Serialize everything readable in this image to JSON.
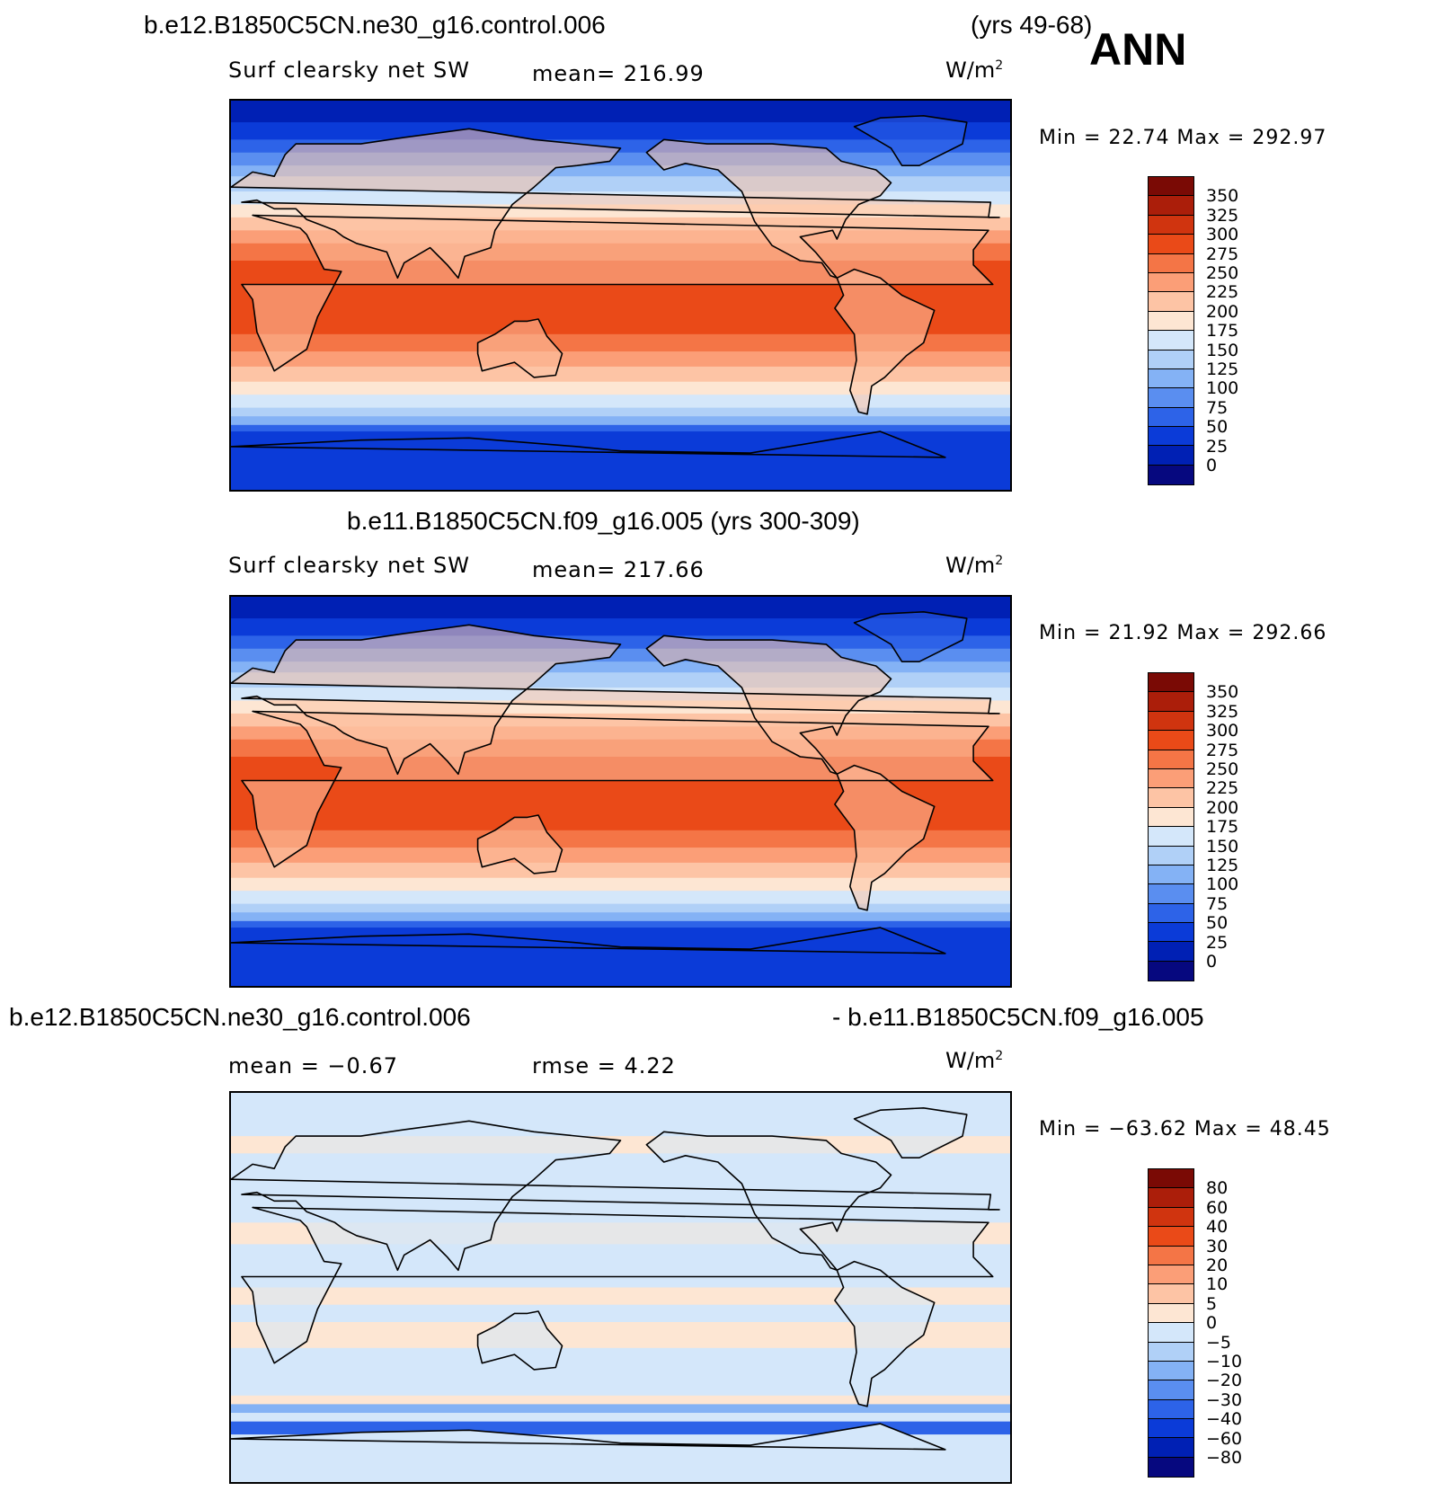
{
  "header": {
    "case_title": "b.e12.B1850C5CN.ne30_g16.control.006",
    "years": "(yrs 49-68)",
    "season": "ANN"
  },
  "panels": [
    {
      "title": "",
      "variable": "Surf clearsky net SW",
      "mean": "mean= 216.99",
      "units": "W/m",
      "units_sup": "2",
      "minmax": "Min =   22.74  Max =  292.97",
      "kind": "abs"
    },
    {
      "title": "b.e11.B1850C5CN.f09_g16.005 (yrs 300-309)",
      "variable": "Surf clearsky net SW",
      "mean": "mean= 217.66",
      "units": "W/m",
      "units_sup": "2",
      "minmax": "Min =   21.92  Max =  292.66",
      "kind": "abs"
    },
    {
      "title_left": "b.e12.B1850C5CN.ne30_g16.control.006",
      "title_right": "- b.e11.B1850C5CN.f09_g16.005",
      "mean": "mean =   −0.67",
      "rmse": "rmse =    4.22",
      "units": "W/m",
      "units_sup": "2",
      "minmax": "Min = −63.62  Max =   48.45",
      "kind": "diff"
    }
  ],
  "colorbars": {
    "abs": {
      "labels": [
        "350",
        "325",
        "300",
        "275",
        "250",
        "225",
        "200",
        "175",
        "150",
        "125",
        "100",
        "75",
        "50",
        "25",
        "0"
      ],
      "colors": [
        "#7a0a05",
        "#ab1e0a",
        "#d0340f",
        "#ea4a18",
        "#f47546",
        "#fb9e77",
        "#fdc4a5",
        "#fde6d3",
        "#d4e7fa",
        "#b0d0f7",
        "#84b2f5",
        "#5a8ef0",
        "#2d63e8",
        "#0b3bd8",
        "#0020b4",
        "#06087f"
      ]
    },
    "diff": {
      "labels": [
        "80",
        "60",
        "40",
        "30",
        "20",
        "10",
        "5",
        "0",
        "−5",
        "−10",
        "−20",
        "−30",
        "−40",
        "−60",
        "−80"
      ],
      "colors": [
        "#7a0a05",
        "#ab1e0a",
        "#d0340f",
        "#ea4a18",
        "#f47546",
        "#fb9e77",
        "#fdc4a5",
        "#fde6d3",
        "#d4e7fa",
        "#b0d0f7",
        "#84b2f5",
        "#5a8ef0",
        "#2d63e8",
        "#0b3bd8",
        "#0020b4",
        "#06087f"
      ]
    }
  }
}
